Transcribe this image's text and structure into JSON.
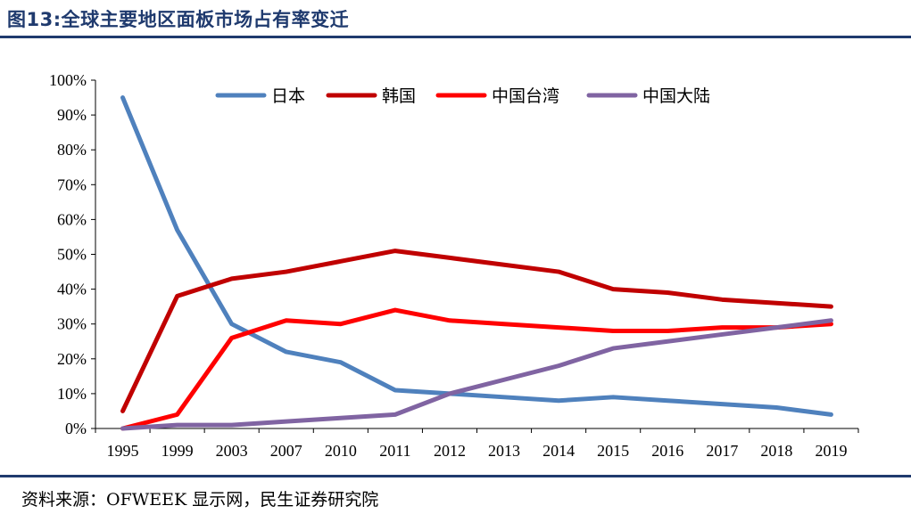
{
  "title": "图13:全球主要地区面板市场占有率变迁",
  "source": "资料来源：OFWEEK 显示网，民生证券研究院",
  "chart_data": {
    "type": "line",
    "title": "",
    "xlabel": "",
    "ylabel": "",
    "categories": [
      "1995",
      "1999",
      "2003",
      "2007",
      "2010",
      "2011",
      "2012",
      "2013",
      "2014",
      "2015",
      "2016",
      "2017",
      "2018",
      "2019"
    ],
    "ylim": [
      0,
      100
    ],
    "yticks": [
      "0%",
      "10%",
      "20%",
      "30%",
      "40%",
      "50%",
      "60%",
      "70%",
      "80%",
      "90%",
      "100%"
    ],
    "grid": false,
    "legend": "top",
    "series": [
      {
        "name": "日本",
        "color": "#4f81bd",
        "values": [
          95,
          57,
          30,
          22,
          19,
          11,
          10,
          9,
          8,
          9,
          8,
          7,
          6,
          4
        ]
      },
      {
        "name": "韩国",
        "color": "#c00000",
        "values": [
          5,
          38,
          43,
          45,
          48,
          51,
          49,
          47,
          45,
          40,
          39,
          37,
          36,
          35
        ]
      },
      {
        "name": "中国台湾",
        "color": "#ff0000",
        "values": [
          0,
          4,
          26,
          31,
          30,
          34,
          31,
          30,
          29,
          28,
          28,
          29,
          29,
          30
        ]
      },
      {
        "name": "中国大陆",
        "color": "#8064a2",
        "values": [
          0,
          1,
          1,
          2,
          3,
          4,
          10,
          14,
          18,
          23,
          25,
          27,
          29,
          31
        ]
      }
    ]
  }
}
